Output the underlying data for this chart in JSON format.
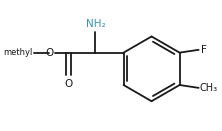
{
  "bg_color": "#ffffff",
  "line_color": "#1a1a1a",
  "text_color_nh2": "#3399aa",
  "text_color_black": "#1a1a1a",
  "line_width": 1.3,
  "figsize": [
    2.22,
    1.31
  ],
  "dpi": 100,
  "NH2_label": "NH₂",
  "F_label": "F",
  "O_label": "O",
  "CH3_label": "CH₃"
}
